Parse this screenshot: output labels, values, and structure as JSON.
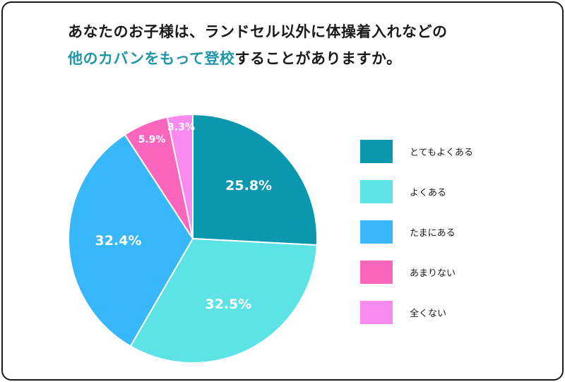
{
  "title": {
    "line1": "あなたのお子様は、ランドセル以外に体操着入れなどの",
    "line2_accent": "他のカバンをもって登校",
    "line2_rest": "することがありますか。"
  },
  "colors": {
    "accent": "#2196a8",
    "slices": [
      "#0b97ad",
      "#5de2e6",
      "#38b7fa",
      "#fb66bd",
      "#f88af0"
    ]
  },
  "chart_data": {
    "type": "pie",
    "categories": [
      "とてもよくある",
      "よくある",
      "たまにある",
      "あまりない",
      "全くない"
    ],
    "values": [
      25.8,
      32.5,
      32.4,
      5.9,
      3.3
    ],
    "labels": [
      "25.8%",
      "32.5%",
      "32.4%",
      "5.9%",
      "3.3%"
    ],
    "start_angle": "12 o'clock",
    "direction": "clockwise",
    "legend_position": "right"
  }
}
